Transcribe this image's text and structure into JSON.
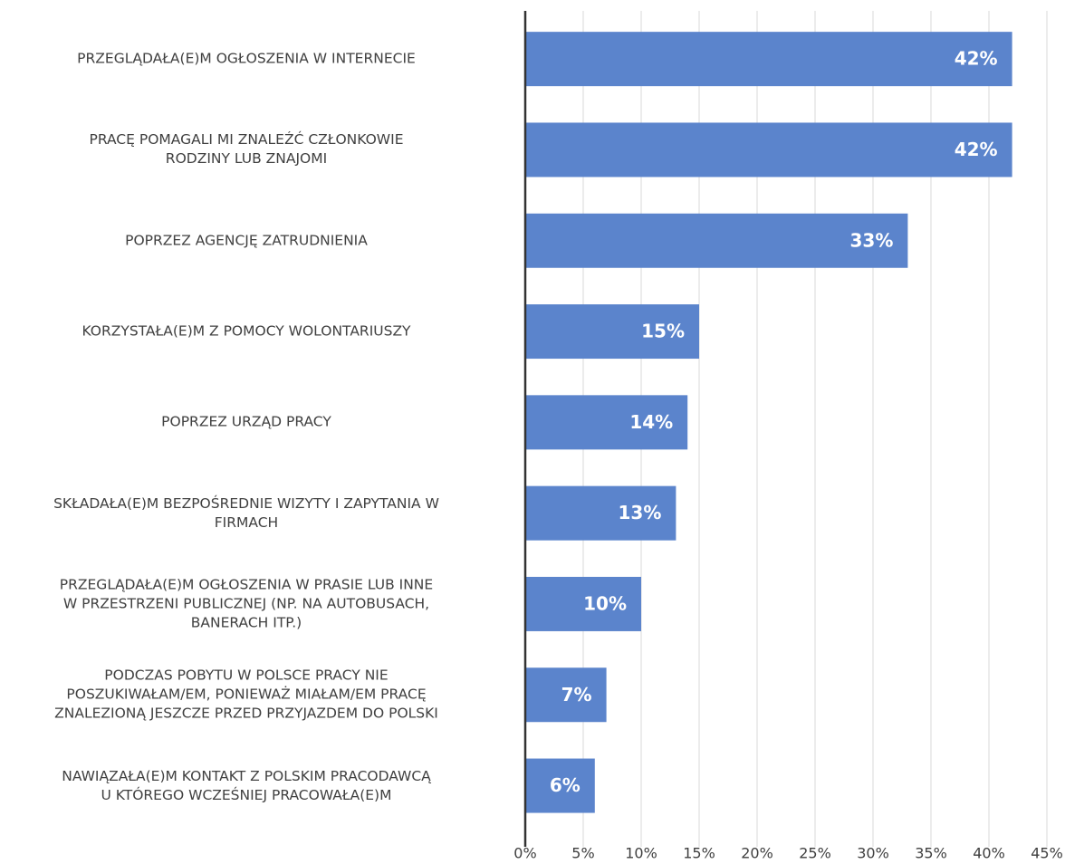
{
  "chart_data": {
    "type": "barh",
    "categories": [
      "PRZEGLĄDAŁA(E)M OGŁOSZENIA W INTERNECIE",
      "PRACĘ POMAGALI MI ZNALEŹĆ CZŁONKOWIE\nRODZINY LUB ZNAJOMI",
      "POPRZEZ AGENCJĘ ZATRUDNIENIA",
      "KORZYSTAŁA(E)M Z POMOCY WOLONTARIUSZY",
      "POPRZEZ URZĄD PRACY",
      "SKŁADAŁA(E)M BEZPOŚREDNIE WIZYTY I ZAPYTANIA W\nFIRMACH",
      "PRZEGLĄDAŁA(E)M OGŁOSZENIA W PRASIE LUB INNE\nW PRZESTRZENI PUBLICZNEJ (NP. NA AUTOBUSACH,\nBANERACH ITP.)",
      "PODCZAS POBYTU W POLSCE PRACY NIE\nPOSZUKIWAŁAM/EM, PONIEWAŻ MIAŁAM/EM PRACĘ\nZNALEZIONĄ JESZCZE PRZED PRZYJAZDEM DO POLSKI",
      "NAWIĄZAŁA(E)M KONTAKT Z POLSKIM PRACODAWCĄ\nU KTÓREGO WCZEŚNIEJ PRACOWAŁA(E)M"
    ],
    "values": [
      42,
      42,
      33,
      15,
      14,
      13,
      10,
      7,
      6
    ],
    "value_labels": [
      "42%",
      "42%",
      "33%",
      "15%",
      "14%",
      "13%",
      "10%",
      "7%",
      "6%"
    ],
    "color": "#5b84cc",
    "xlim": [
      0,
      45
    ],
    "xticks": [
      {
        "value": 0,
        "label": "0%"
      },
      {
        "value": 5,
        "label": "5%"
      },
      {
        "value": 10,
        "label": "10%"
      },
      {
        "value": 15,
        "label": "15%"
      },
      {
        "value": 20,
        "label": "20%"
      },
      {
        "value": 25,
        "label": "25%"
      },
      {
        "value": 30,
        "label": "30%"
      },
      {
        "value": 35,
        "label": "35%"
      },
      {
        "value": 40,
        "label": "40%"
      },
      {
        "value": 45,
        "label": "45%"
      }
    ],
    "grid": true
  }
}
